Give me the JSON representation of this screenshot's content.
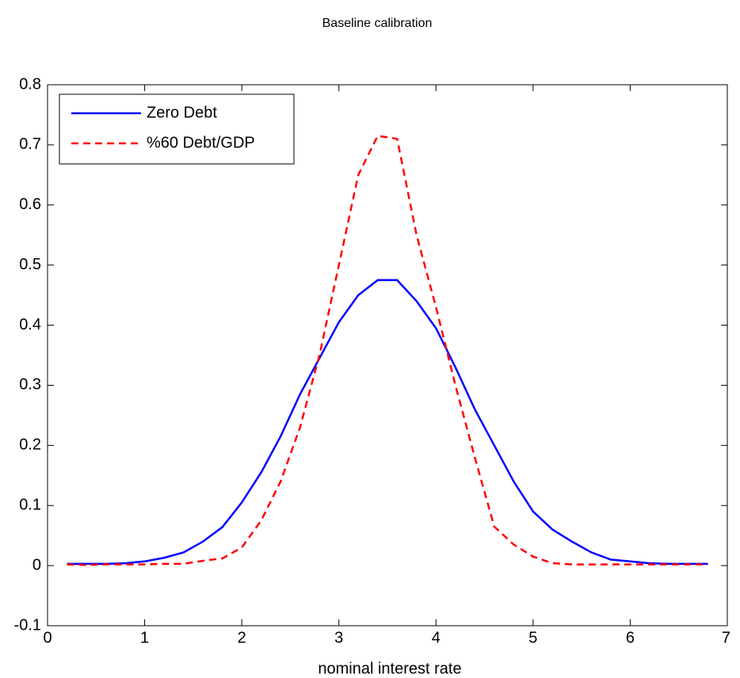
{
  "chart_data": {
    "type": "line",
    "title": "Baseline calibration",
    "x_label": "nominal interest rate",
    "x": [
      0.2,
      0.4,
      0.6,
      0.8,
      1.0,
      1.2,
      1.4,
      1.6,
      1.8,
      2.0,
      2.2,
      2.4,
      2.6,
      2.8,
      3.0,
      3.2,
      3.4,
      3.6,
      3.8,
      4.0,
      4.2,
      4.4,
      4.6,
      4.8,
      5.0,
      5.2,
      5.4,
      5.6,
      5.8,
      6.0,
      6.2,
      6.4,
      6.6,
      6.8
    ],
    "series": [
      {
        "name": "Zero Debt",
        "color": "#0000ff",
        "dash": "solid",
        "values": [
          0.003,
          0.003,
          0.003,
          0.004,
          0.007,
          0.013,
          0.022,
          0.04,
          0.064,
          0.105,
          0.155,
          0.215,
          0.285,
          0.345,
          0.405,
          0.45,
          0.475,
          0.475,
          0.44,
          0.395,
          0.33,
          0.26,
          0.2,
          0.14,
          0.09,
          0.06,
          0.04,
          0.022,
          0.01,
          0.007,
          0.004,
          0.003,
          0.003,
          0.003
        ]
      },
      {
        "name": "%60 Debt/GDP",
        "color": "#ff0000",
        "dash": "dashed",
        "values": [
          0.002,
          0.001,
          0.002,
          0.002,
          0.002,
          0.003,
          0.003,
          0.008,
          0.012,
          0.03,
          0.075,
          0.14,
          0.23,
          0.35,
          0.5,
          0.65,
          0.715,
          0.71,
          0.55,
          0.43,
          0.3,
          0.18,
          0.065,
          0.035,
          0.015,
          0.004,
          0.002,
          0.002,
          0.002,
          0.002,
          0.002,
          0.002,
          0.002,
          0.002
        ]
      }
    ],
    "xlim": [
      0,
      7
    ],
    "xticks": [
      0,
      1,
      2,
      3,
      4,
      5,
      6,
      7
    ],
    "ylim": [
      -0.1,
      0.8
    ],
    "yticks": [
      -0.1,
      0,
      0.1,
      0.2,
      0.3,
      0.4,
      0.5,
      0.6,
      0.7,
      0.8
    ],
    "grid": false,
    "legend": "upper-left"
  }
}
